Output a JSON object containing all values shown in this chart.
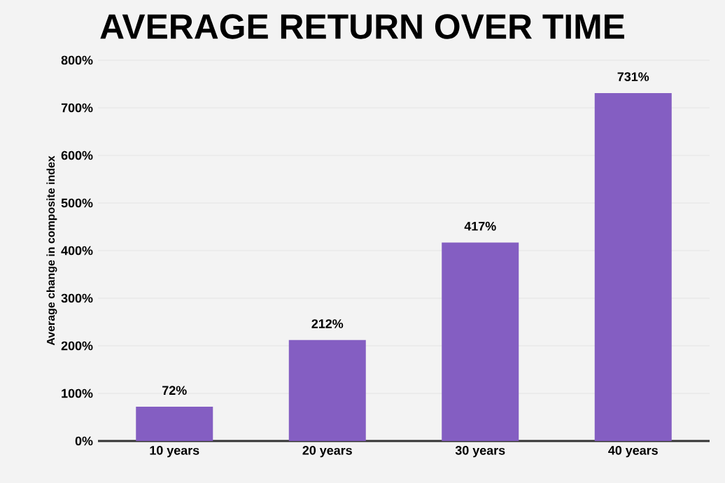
{
  "chart_data": {
    "type": "bar",
    "title": "AVERAGE RETURN OVER TIME",
    "ylabel": "Average change in composite index",
    "categories": [
      "10 years",
      "20 years",
      "30 years",
      "40 years"
    ],
    "values": [
      72,
      212,
      417,
      731
    ],
    "value_labels": [
      "72%",
      "212%",
      "417%",
      "731%"
    ],
    "color": "#845ec2",
    "ylim": [
      0,
      800
    ],
    "yticks": [
      {
        "value": 0,
        "label": "0%"
      },
      {
        "value": 100,
        "label": "100%"
      },
      {
        "value": 200,
        "label": "200%"
      },
      {
        "value": 300,
        "label": "300%"
      },
      {
        "value": 400,
        "label": "400%"
      },
      {
        "value": 500,
        "label": "500%"
      },
      {
        "value": 600,
        "label": "600%"
      },
      {
        "value": 700,
        "label": "700%"
      },
      {
        "value": 800,
        "label": "800%"
      }
    ],
    "grid": "y"
  }
}
